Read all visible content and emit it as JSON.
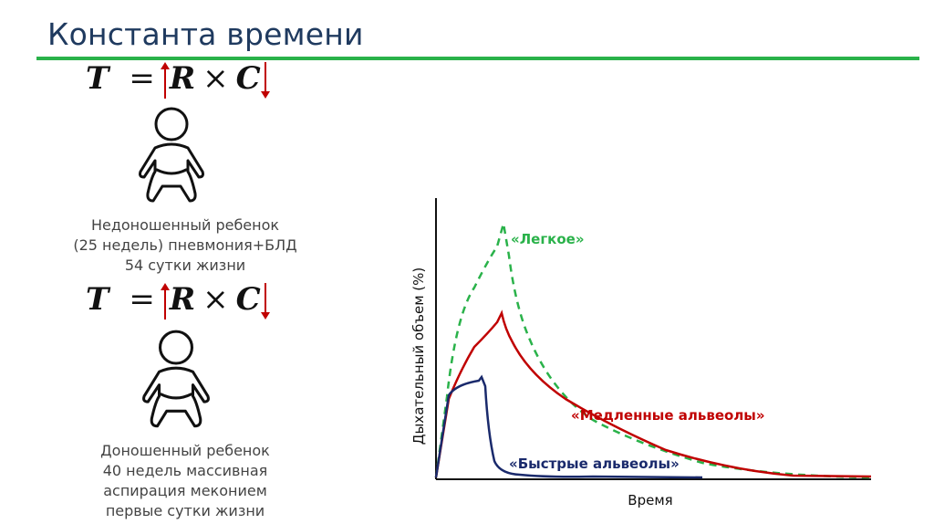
{
  "header": {
    "title": "Константа времени"
  },
  "formula": {
    "lhs": "T",
    "equals": "=",
    "r": "R",
    "times": "×",
    "c": "C"
  },
  "cases": [
    {
      "caption": [
        "Недоношенный ребенок",
        "(25 недель) пневмония+БЛД",
        "54 сутки жизни"
      ],
      "r_trend": "up",
      "c_trend": "down"
    },
    {
      "caption": [
        "Доношенный ребенок",
        "40 недель массивная",
        "аспирация мекониeм",
        "первые сутки жизни"
      ],
      "r_trend": "up",
      "c_trend": "down"
    }
  ],
  "colors": {
    "title": "#1f3a5f",
    "rule": "#2ab24a",
    "arrow": "#c00000",
    "lung": "#2ab24a",
    "slow": "#c00000",
    "fast": "#1a2a6c"
  },
  "chart_data": {
    "type": "line",
    "xlabel": "Время",
    "ylabel": "Дыхательный объем (%)",
    "series": [
      {
        "name": "«Легкое»",
        "style": "dashed",
        "color": "#2ab24a"
      },
      {
        "name": "«Медленные альвеолы»",
        "style": "solid",
        "color": "#c00000"
      },
      {
        "name": "«Быстрые альвеолы»",
        "style": "solid",
        "color": "#1a2a6c"
      }
    ]
  }
}
